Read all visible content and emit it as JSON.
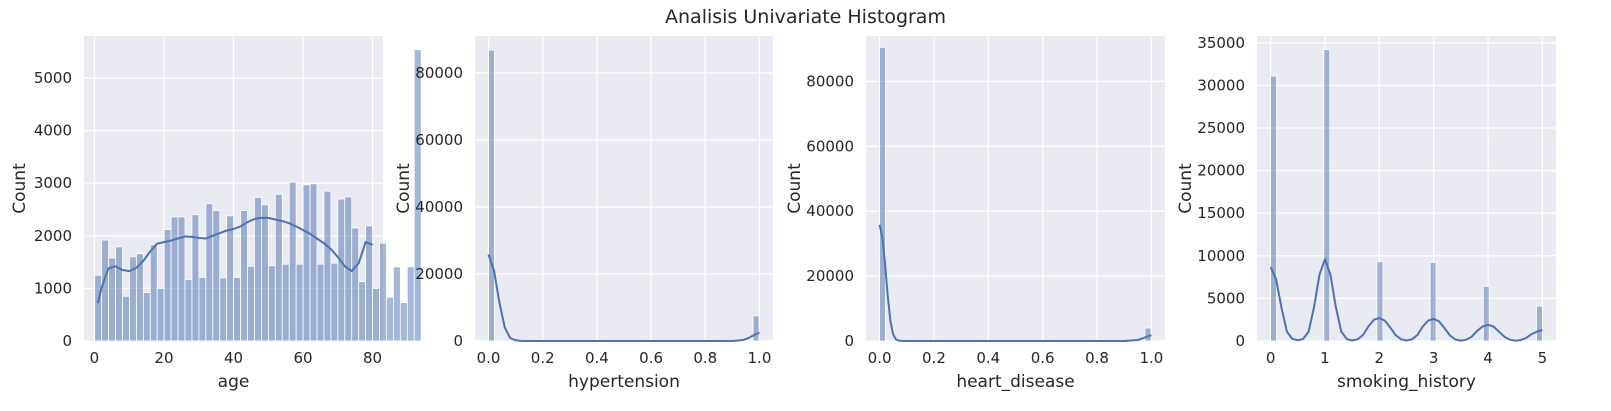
{
  "figure": {
    "suptitle": "Analisis Univariate Histogram"
  },
  "style": {
    "plot_bg": "#eaeaf2",
    "grid": "#ffffff",
    "bar_fill": "#4c72b0",
    "bar_opacity": 0.5,
    "kde_color": "#4c72b0"
  },
  "chart_data": [
    {
      "type": "bar",
      "xlabel": "age",
      "ylabel": "Count",
      "xlim": [
        -3,
        83
      ],
      "ylim": [
        0,
        5800
      ],
      "xticks": [
        0,
        20,
        40,
        60,
        80
      ],
      "xtick_labels": [
        "0",
        "20",
        "40",
        "60",
        "80"
      ],
      "yticks": [
        0,
        1000,
        2000,
        3000,
        4000,
        5000
      ],
      "ytick_labels": [
        "0",
        "1000",
        "2000",
        "3000",
        "4000",
        "5000"
      ],
      "bin_start": 0.08,
      "bin_width": 1.998,
      "bar_heights": [
        1250,
        1920,
        1580,
        1790,
        850,
        1600,
        1660,
        920,
        1830,
        1000,
        2120,
        2360,
        2360,
        1170,
        2400,
        1210,
        2610,
        2480,
        1200,
        2380,
        1210,
        2480,
        1420,
        2730,
        2590,
        1430,
        2790,
        1460,
        3020,
        1460,
        2970,
        2990,
        1460,
        2850,
        1480,
        2700,
        2740,
        2150,
        1130,
        2190,
        1000,
        1860,
        830,
        1410,
        730,
        1410,
        5540
      ],
      "kde_x": [
        1,
        2,
        4,
        6,
        8,
        10,
        12,
        14,
        16,
        18,
        20,
        22,
        24,
        26,
        28,
        30,
        32,
        34,
        36,
        38,
        40,
        42,
        44,
        46,
        48,
        50,
        52,
        54,
        56,
        58,
        60,
        62,
        64,
        66,
        68,
        70,
        72,
        74,
        76,
        78,
        80
      ],
      "kde_y": [
        720,
        1000,
        1380,
        1420,
        1350,
        1330,
        1390,
        1520,
        1700,
        1850,
        1880,
        1910,
        1950,
        1990,
        1980,
        1960,
        1950,
        2000,
        2050,
        2100,
        2130,
        2180,
        2260,
        2320,
        2340,
        2340,
        2310,
        2280,
        2240,
        2180,
        2110,
        2040,
        1950,
        1860,
        1750,
        1600,
        1420,
        1330,
        1480,
        1880,
        1830
      ]
    },
    {
      "type": "bar",
      "xlabel": "hypertension",
      "ylabel": "Count",
      "xlim": [
        -0.05,
        1.05
      ],
      "ylim": [
        0,
        91000
      ],
      "xticks": [
        0,
        0.2,
        0.4,
        0.6,
        0.8,
        1.0
      ],
      "xtick_labels": [
        "0.0",
        "0.2",
        "0.4",
        "0.6",
        "0.8",
        "1.0"
      ],
      "yticks": [
        0,
        20000,
        40000,
        60000,
        80000
      ],
      "ytick_labels": [
        "0",
        "20000",
        "40000",
        "60000",
        "80000"
      ],
      "bin_start": 0,
      "bin_width": 0.0217,
      "bar_heights": [
        86800,
        0,
        0,
        0,
        0,
        0,
        0,
        0,
        0,
        0,
        0,
        0,
        0,
        0,
        0,
        0,
        0,
        0,
        0,
        0,
        0,
        0,
        0,
        0,
        0,
        0,
        0,
        0,
        0,
        0,
        0,
        0,
        0,
        0,
        0,
        0,
        0,
        0,
        0,
        0,
        0,
        0,
        0,
        0,
        0,
        7500
      ],
      "kde_x": [
        0,
        0.02,
        0.04,
        0.06,
        0.08,
        0.1,
        0.12,
        0.15,
        0.2,
        0.5,
        0.8,
        0.85,
        0.9,
        0.94,
        0.96,
        0.98,
        1.0
      ],
      "kde_y": [
        25800,
        21000,
        11500,
        4000,
        900,
        200,
        30,
        0,
        0,
        0,
        0,
        0,
        0,
        300,
        900,
        1800,
        2500
      ]
    },
    {
      "type": "bar",
      "xlabel": "heart_disease",
      "ylabel": "Count",
      "xlim": [
        -0.05,
        1.05
      ],
      "ylim": [
        0,
        94000
      ],
      "xticks": [
        0,
        0.2,
        0.4,
        0.6,
        0.8,
        1.0
      ],
      "xtick_labels": [
        "0.0",
        "0.2",
        "0.4",
        "0.6",
        "0.8",
        "1.0"
      ],
      "yticks": [
        0,
        20000,
        40000,
        60000,
        80000
      ],
      "ytick_labels": [
        "0",
        "20000",
        "40000",
        "60000",
        "80000"
      ],
      "bin_start": 0,
      "bin_width": 0.0217,
      "bar_heights": [
        90500,
        0,
        0,
        0,
        0,
        0,
        0,
        0,
        0,
        0,
        0,
        0,
        0,
        0,
        0,
        0,
        0,
        0,
        0,
        0,
        0,
        0,
        0,
        0,
        0,
        0,
        0,
        0,
        0,
        0,
        0,
        0,
        0,
        0,
        0,
        0,
        0,
        0,
        0,
        0,
        0,
        0,
        0,
        0,
        0,
        4000
      ],
      "kde_x": [
        0,
        0.01,
        0.02,
        0.03,
        0.04,
        0.05,
        0.06,
        0.07,
        0.08,
        0.1,
        0.15,
        0.5,
        0.9,
        0.95,
        0.98,
        1.0
      ],
      "kde_y": [
        35800,
        32000,
        24000,
        14000,
        6000,
        2000,
        500,
        150,
        30,
        0,
        0,
        0,
        0,
        300,
        1200,
        1800
      ]
    },
    {
      "type": "bar",
      "xlabel": "smoking_history",
      "ylabel": "Count",
      "xlim": [
        -0.25,
        5.25
      ],
      "ylim": [
        0,
        35800
      ],
      "xticks": [
        0,
        1,
        2,
        3,
        4,
        5
      ],
      "xtick_labels": [
        "0",
        "1",
        "2",
        "3",
        "4",
        "5"
      ],
      "yticks": [
        0,
        5000,
        10000,
        15000,
        20000,
        25000,
        30000,
        35000
      ],
      "ytick_labels": [
        "0",
        "5000",
        "10000",
        "15000",
        "20000",
        "25000",
        "30000",
        "35000"
      ],
      "bin_start": 0,
      "bin_width": 0.1087,
      "bar_heights": [
        31100,
        0,
        0,
        0,
        0,
        0,
        0,
        0,
        0,
        34200,
        0,
        0,
        0,
        0,
        0,
        0,
        0,
        0,
        9300,
        0,
        0,
        0,
        0,
        0,
        0,
        0,
        0,
        9200,
        0,
        0,
        0,
        0,
        0,
        0,
        0,
        0,
        6400,
        0,
        0,
        0,
        0,
        0,
        0,
        0,
        0,
        4100
      ],
      "kde_x": [
        0,
        0.1,
        0.2,
        0.3,
        0.4,
        0.5,
        0.6,
        0.7,
        0.8,
        0.9,
        1.0,
        1.1,
        1.2,
        1.3,
        1.4,
        1.5,
        1.6,
        1.7,
        1.8,
        1.9,
        2.0,
        2.1,
        2.2,
        2.3,
        2.4,
        2.5,
        2.6,
        2.7,
        2.8,
        2.9,
        3.0,
        3.1,
        3.2,
        3.3,
        3.4,
        3.5,
        3.6,
        3.7,
        3.8,
        3.9,
        4.0,
        4.1,
        4.2,
        4.3,
        4.4,
        4.5,
        4.6,
        4.7,
        4.8,
        4.9,
        5.0
      ],
      "kde_y": [
        8700,
        7300,
        3900,
        1100,
        250,
        80,
        250,
        1100,
        4000,
        7800,
        9600,
        7800,
        4000,
        1100,
        250,
        60,
        200,
        700,
        1700,
        2500,
        2700,
        2400,
        1600,
        700,
        200,
        60,
        200,
        700,
        1700,
        2400,
        2600,
        2300,
        1500,
        650,
        180,
        50,
        150,
        500,
        1200,
        1700,
        1900,
        1700,
        1100,
        500,
        150,
        40,
        100,
        350,
        800,
        1100,
        1300
      ]
    }
  ]
}
